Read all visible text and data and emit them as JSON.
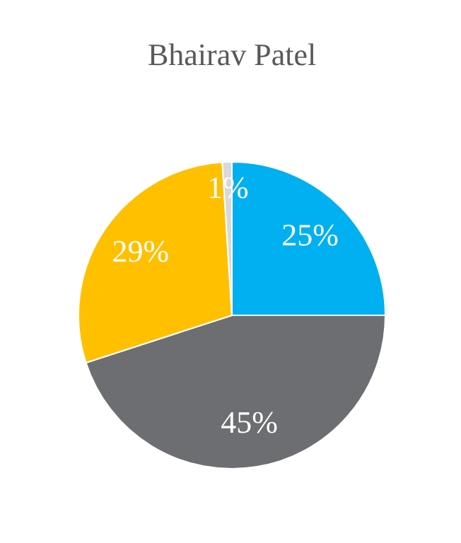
{
  "chart_data": {
    "type": "pie",
    "title": "Bhairav Patel",
    "categories": [
      null,
      null,
      null,
      null
    ],
    "values": [
      25,
      45,
      29,
      1
    ],
    "colors": [
      "#00b0f0",
      "#6d6e71",
      "#ffc000",
      "#d9d9d9"
    ],
    "value_labels": [
      "25%",
      "45%",
      "29%",
      "1%"
    ],
    "legend": false
  }
}
